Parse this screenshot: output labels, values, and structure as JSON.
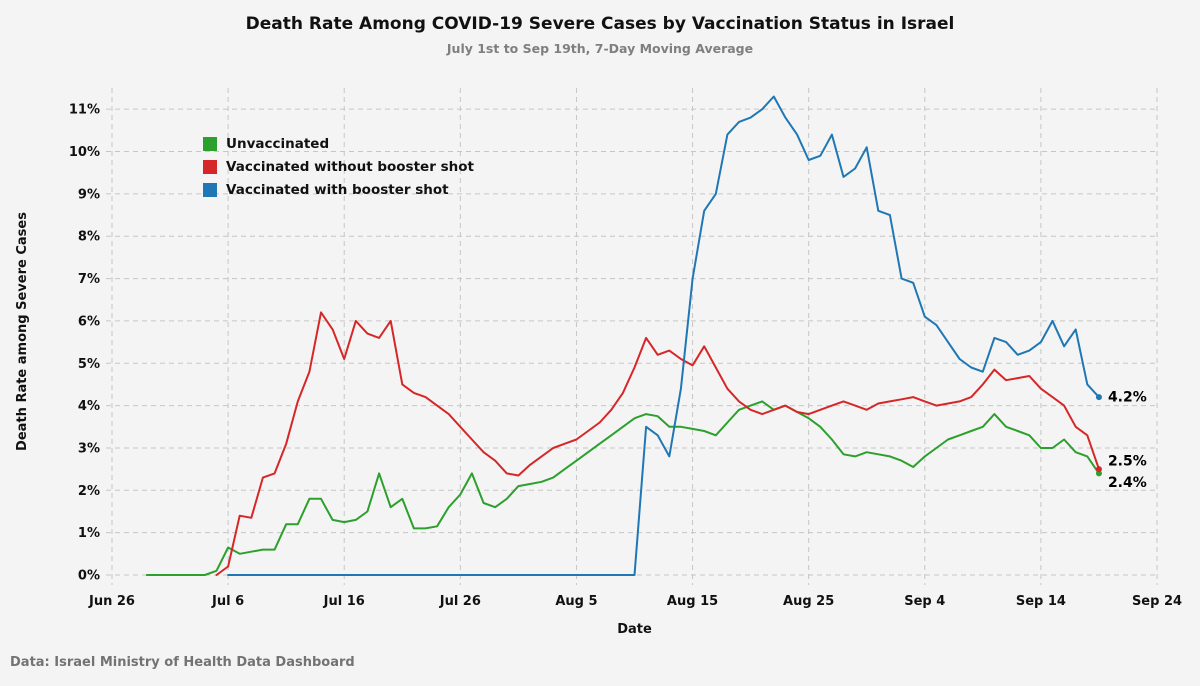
{
  "page": {
    "title": "Death Rate Among COVID-19 Severe Cases by Vaccination Status in Israel",
    "subtitle": "July 1st to Sep 19th, 7-Day Moving Average",
    "source": "Data: Israel Ministry of Health Data Dashboard"
  },
  "chart_data": {
    "type": "line",
    "title": "Death Rate Among COVID-19 Severe Cases by Vaccination Status in Israel",
    "subtitle": "July 1st to Sep 19th, 7-Day Moving Average",
    "xlabel": "Date",
    "ylabel": "Death Rate among Severe Cases",
    "x_unit": "days since Jun 26",
    "x_domain": [
      0,
      90
    ],
    "y_domain": [
      0,
      11.5
    ],
    "grid": "dashed",
    "legend_position": "upper-left",
    "x_ticks": [
      {
        "day": 0,
        "label": "Jun 26"
      },
      {
        "day": 10,
        "label": "Jul 6"
      },
      {
        "day": 20,
        "label": "Jul 16"
      },
      {
        "day": 30,
        "label": "Jul 26"
      },
      {
        "day": 40,
        "label": "Aug 5"
      },
      {
        "day": 50,
        "label": "Aug 15"
      },
      {
        "day": 60,
        "label": "Aug 25"
      },
      {
        "day": 70,
        "label": "Sep 4"
      },
      {
        "day": 80,
        "label": "Sep 14"
      },
      {
        "day": 90,
        "label": "Sep 24"
      }
    ],
    "y_ticks": [
      {
        "value": 0,
        "label": "0%"
      },
      {
        "value": 1,
        "label": "1%"
      },
      {
        "value": 2,
        "label": "2%"
      },
      {
        "value": 3,
        "label": "3%"
      },
      {
        "value": 4,
        "label": "4%"
      },
      {
        "value": 5,
        "label": "5%"
      },
      {
        "value": 6,
        "label": "6%"
      },
      {
        "value": 7,
        "label": "7%"
      },
      {
        "value": 8,
        "label": "8%"
      },
      {
        "value": 9,
        "label": "9%"
      },
      {
        "value": 10,
        "label": "10%"
      },
      {
        "value": 11,
        "label": "11%"
      }
    ],
    "series": [
      {
        "name": "Unvaccinated",
        "color": "#2ca02c",
        "points": [
          [
            3,
            0
          ],
          [
            4,
            0
          ],
          [
            5,
            0
          ],
          [
            6,
            0
          ],
          [
            7,
            0
          ],
          [
            8,
            0
          ],
          [
            9,
            0.1
          ],
          [
            10,
            0.65
          ],
          [
            11,
            0.5
          ],
          [
            12,
            0.55
          ],
          [
            13,
            0.6
          ],
          [
            14,
            0.6
          ],
          [
            15,
            1.2
          ],
          [
            16,
            1.2
          ],
          [
            17,
            1.8
          ],
          [
            18,
            1.8
          ],
          [
            19,
            1.3
          ],
          [
            20,
            1.25
          ],
          [
            21,
            1.3
          ],
          [
            22,
            1.5
          ],
          [
            23,
            2.4
          ],
          [
            24,
            1.6
          ],
          [
            25,
            1.8
          ],
          [
            26,
            1.1
          ],
          [
            27,
            1.1
          ],
          [
            28,
            1.15
          ],
          [
            29,
            1.6
          ],
          [
            30,
            1.9
          ],
          [
            31,
            2.4
          ],
          [
            32,
            1.7
          ],
          [
            33,
            1.6
          ],
          [
            34,
            1.8
          ],
          [
            35,
            2.1
          ],
          [
            36,
            2.15
          ],
          [
            37,
            2.2
          ],
          [
            38,
            2.3
          ],
          [
            39,
            2.5
          ],
          [
            40,
            2.7
          ],
          [
            41,
            2.9
          ],
          [
            42,
            3.1
          ],
          [
            43,
            3.3
          ],
          [
            44,
            3.5
          ],
          [
            45,
            3.7
          ],
          [
            46,
            3.8
          ],
          [
            47,
            3.75
          ],
          [
            48,
            3.5
          ],
          [
            49,
            3.5
          ],
          [
            50,
            3.45
          ],
          [
            51,
            3.4
          ],
          [
            52,
            3.3
          ],
          [
            53,
            3.6
          ],
          [
            54,
            3.9
          ],
          [
            55,
            4.0
          ],
          [
            56,
            4.1
          ],
          [
            57,
            3.9
          ],
          [
            58,
            4.0
          ],
          [
            59,
            3.85
          ],
          [
            60,
            3.7
          ],
          [
            61,
            3.5
          ],
          [
            62,
            3.2
          ],
          [
            63,
            2.85
          ],
          [
            64,
            2.8
          ],
          [
            65,
            2.9
          ],
          [
            66,
            2.85
          ],
          [
            67,
            2.8
          ],
          [
            68,
            2.7
          ],
          [
            69,
            2.55
          ],
          [
            70,
            2.8
          ],
          [
            71,
            3.0
          ],
          [
            72,
            3.2
          ],
          [
            73,
            3.3
          ],
          [
            74,
            3.4
          ],
          [
            75,
            3.5
          ],
          [
            76,
            3.8
          ],
          [
            77,
            3.5
          ],
          [
            78,
            3.4
          ],
          [
            79,
            3.3
          ],
          [
            80,
            3.0
          ],
          [
            81,
            3.0
          ],
          [
            82,
            3.2
          ],
          [
            83,
            2.9
          ],
          [
            84,
            2.8
          ],
          [
            85,
            2.4
          ]
        ]
      },
      {
        "name": "Vaccinated without booster shot",
        "color": "#d62728",
        "points": [
          [
            9,
            0
          ],
          [
            10,
            0.2
          ],
          [
            11,
            1.4
          ],
          [
            12,
            1.35
          ],
          [
            13,
            2.3
          ],
          [
            14,
            2.4
          ],
          [
            15,
            3.1
          ],
          [
            16,
            4.1
          ],
          [
            17,
            4.8
          ],
          [
            18,
            6.2
          ],
          [
            19,
            5.8
          ],
          [
            20,
            5.1
          ],
          [
            21,
            6.0
          ],
          [
            22,
            5.7
          ],
          [
            23,
            5.6
          ],
          [
            24,
            6.0
          ],
          [
            25,
            4.5
          ],
          [
            26,
            4.3
          ],
          [
            27,
            4.2
          ],
          [
            28,
            4.0
          ],
          [
            29,
            3.8
          ],
          [
            30,
            3.5
          ],
          [
            31,
            3.2
          ],
          [
            32,
            2.9
          ],
          [
            33,
            2.7
          ],
          [
            34,
            2.4
          ],
          [
            35,
            2.35
          ],
          [
            36,
            2.6
          ],
          [
            37,
            2.8
          ],
          [
            38,
            3.0
          ],
          [
            39,
            3.1
          ],
          [
            40,
            3.2
          ],
          [
            41,
            3.4
          ],
          [
            42,
            3.6
          ],
          [
            43,
            3.9
          ],
          [
            44,
            4.3
          ],
          [
            45,
            4.9
          ],
          [
            46,
            5.6
          ],
          [
            47,
            5.2
          ],
          [
            48,
            5.3
          ],
          [
            49,
            5.1
          ],
          [
            50,
            4.95
          ],
          [
            51,
            5.4
          ],
          [
            52,
            4.9
          ],
          [
            53,
            4.4
          ],
          [
            54,
            4.1
          ],
          [
            55,
            3.9
          ],
          [
            56,
            3.8
          ],
          [
            57,
            3.9
          ],
          [
            58,
            4.0
          ],
          [
            59,
            3.85
          ],
          [
            60,
            3.8
          ],
          [
            61,
            3.9
          ],
          [
            62,
            4.0
          ],
          [
            63,
            4.1
          ],
          [
            64,
            4.0
          ],
          [
            65,
            3.9
          ],
          [
            66,
            4.05
          ],
          [
            67,
            4.1
          ],
          [
            68,
            4.15
          ],
          [
            69,
            4.2
          ],
          [
            70,
            4.1
          ],
          [
            71,
            4.0
          ],
          [
            72,
            4.05
          ],
          [
            73,
            4.1
          ],
          [
            74,
            4.2
          ],
          [
            75,
            4.5
          ],
          [
            76,
            4.85
          ],
          [
            77,
            4.6
          ],
          [
            78,
            4.65
          ],
          [
            79,
            4.7
          ],
          [
            80,
            4.4
          ],
          [
            81,
            4.2
          ],
          [
            82,
            4.0
          ],
          [
            83,
            3.5
          ],
          [
            84,
            3.3
          ],
          [
            85,
            2.5
          ]
        ]
      },
      {
        "name": "Vaccinated with booster shot",
        "color": "#1f77b4",
        "points": [
          [
            10,
            0
          ],
          [
            20,
            0
          ],
          [
            30,
            0
          ],
          [
            40,
            0
          ],
          [
            45,
            0
          ],
          [
            46,
            3.5
          ],
          [
            47,
            3.3
          ],
          [
            48,
            2.8
          ],
          [
            49,
            4.4
          ],
          [
            50,
            7.0
          ],
          [
            51,
            8.6
          ],
          [
            52,
            9.0
          ],
          [
            53,
            10.4
          ],
          [
            54,
            10.7
          ],
          [
            55,
            10.8
          ],
          [
            56,
            11.0
          ],
          [
            57,
            11.3
          ],
          [
            58,
            10.8
          ],
          [
            59,
            10.4
          ],
          [
            60,
            9.8
          ],
          [
            61,
            9.9
          ],
          [
            62,
            10.4
          ],
          [
            63,
            9.4
          ],
          [
            64,
            9.6
          ],
          [
            65,
            10.1
          ],
          [
            66,
            8.6
          ],
          [
            67,
            8.5
          ],
          [
            68,
            7.0
          ],
          [
            69,
            6.9
          ],
          [
            70,
            6.1
          ],
          [
            71,
            5.9
          ],
          [
            72,
            5.5
          ],
          [
            73,
            5.1
          ],
          [
            74,
            4.9
          ],
          [
            75,
            4.8
          ],
          [
            76,
            5.6
          ],
          [
            77,
            5.5
          ],
          [
            78,
            5.2
          ],
          [
            79,
            5.3
          ],
          [
            80,
            5.5
          ],
          [
            81,
            6.0
          ],
          [
            82,
            5.4
          ],
          [
            83,
            5.8
          ],
          [
            84,
            4.5
          ],
          [
            85,
            4.2
          ]
        ]
      }
    ],
    "annotations": [
      {
        "text": "4.2%",
        "day": 85,
        "value": 4.2,
        "series": "Vaccinated with booster shot",
        "dy": 0
      },
      {
        "text": "2.5%",
        "day": 85,
        "value": 2.5,
        "series": "Vaccinated without booster shot",
        "dy": -8
      },
      {
        "text": "2.4%",
        "day": 85,
        "value": 2.4,
        "series": "Unvaccinated",
        "dy": 9
      }
    ]
  }
}
